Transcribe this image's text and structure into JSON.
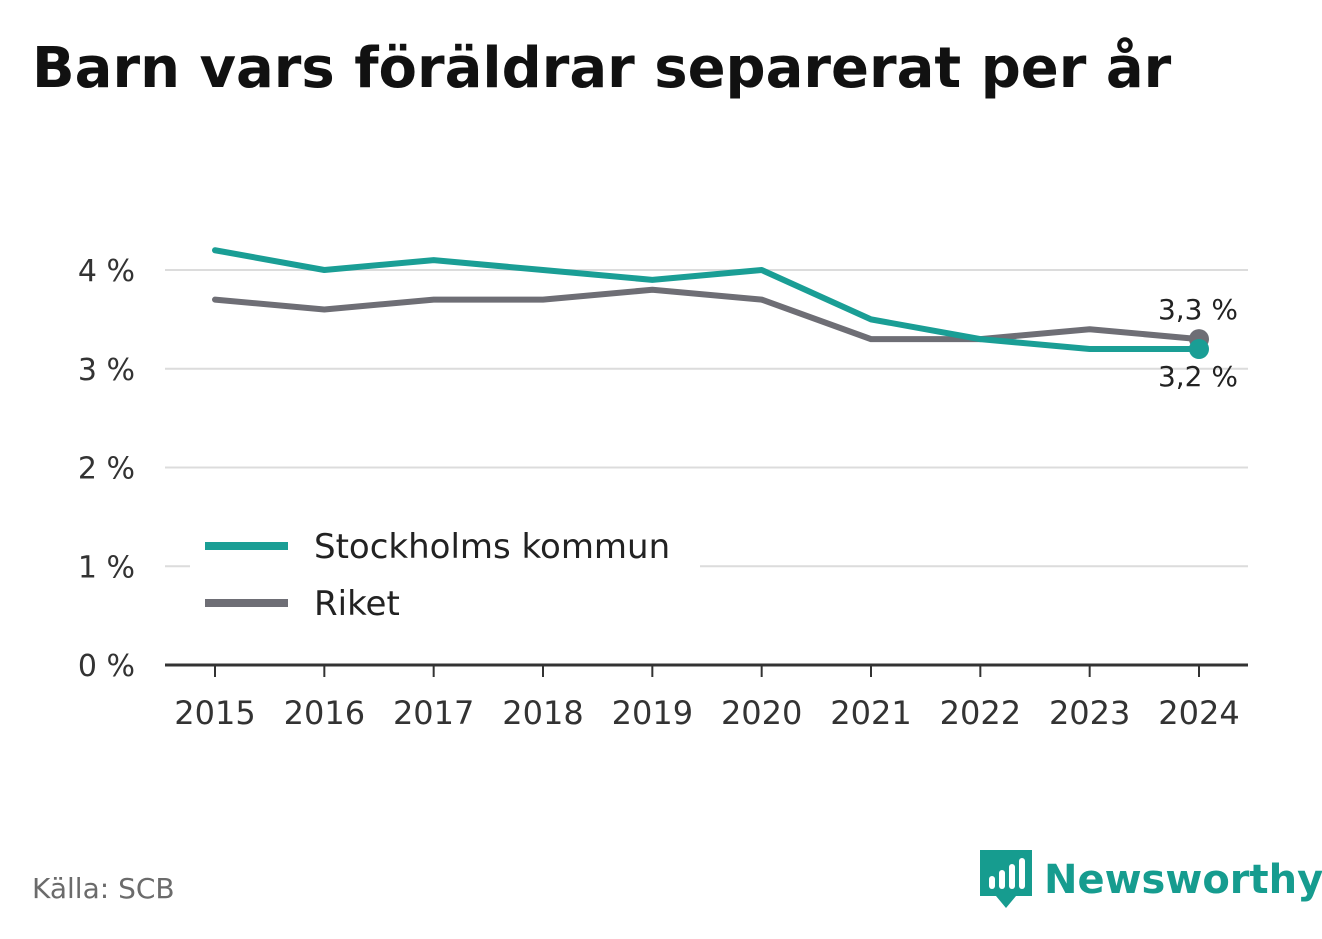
{
  "title": "Barn vars föräldrar separerat per år",
  "source": "Källa: SCB",
  "brand": {
    "name": "Newsworthy",
    "icon": "newsworthy-logo-icon",
    "color": "#169c8f"
  },
  "chart_data": {
    "type": "line",
    "x": [
      "2015",
      "2016",
      "2017",
      "2018",
      "2019",
      "2020",
      "2021",
      "2022",
      "2023",
      "2024"
    ],
    "series": [
      {
        "name": "Stockholms kommun",
        "color": "#1a9e95",
        "values": [
          4.2,
          4.0,
          4.1,
          4.0,
          3.9,
          4.0,
          3.5,
          3.3,
          3.2,
          3.2
        ],
        "end_label": "3,2 %"
      },
      {
        "name": "Riket",
        "color": "#6e6e75",
        "values": [
          3.7,
          3.6,
          3.7,
          3.7,
          3.8,
          3.7,
          3.3,
          3.3,
          3.4,
          3.3
        ],
        "end_label": "3,3 %"
      }
    ],
    "ylim": [
      0,
      4
    ],
    "yticks": [
      0,
      1,
      2,
      3,
      4
    ],
    "ytick_labels": [
      "0 %",
      "1 %",
      "2 %",
      "3 %",
      "4 %"
    ],
    "grid": true,
    "legend": "lower-left"
  }
}
